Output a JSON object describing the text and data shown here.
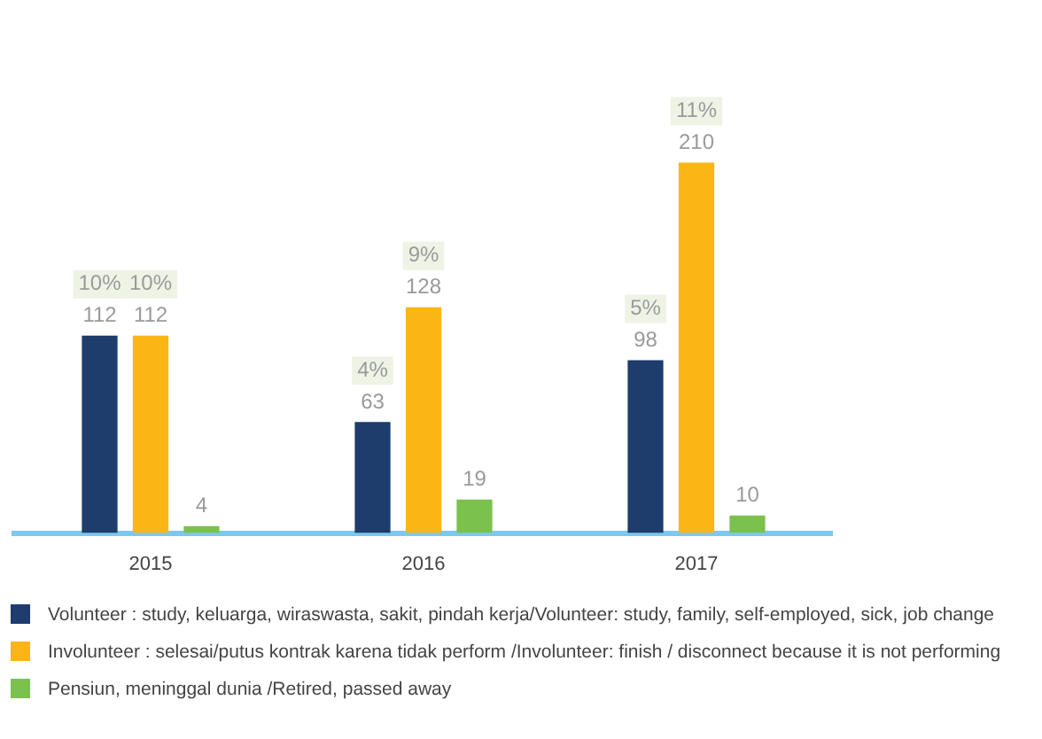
{
  "chart_data": {
    "type": "bar",
    "categories": [
      "2015",
      "2016",
      "2017"
    ],
    "series": [
      {
        "name": "Volunteer : study, keluarga, wiraswasta, sakit, pindah kerja/Volunteer: study, family, self-employed, sick, job change",
        "color": "#1e3c6c",
        "values": [
          112,
          63,
          98
        ]
      },
      {
        "name": "Involunteer : selesai/putus kontrak karena tidak perform /Involunteer: finish / disconnect because it is not performing",
        "color": "#fbb515",
        "values": [
          112,
          128,
          210
        ]
      },
      {
        "name": "Pensiun, meninggal dunia /Retired, passed away",
        "color": "#7bc14e",
        "values": [
          4,
          19,
          10
        ]
      }
    ],
    "data_labels": true,
    "annotations": [
      "10%",
      "10%",
      "4%",
      "9%",
      "5%",
      "11%"
    ],
    "grid": false,
    "legend": "bottom"
  }
}
